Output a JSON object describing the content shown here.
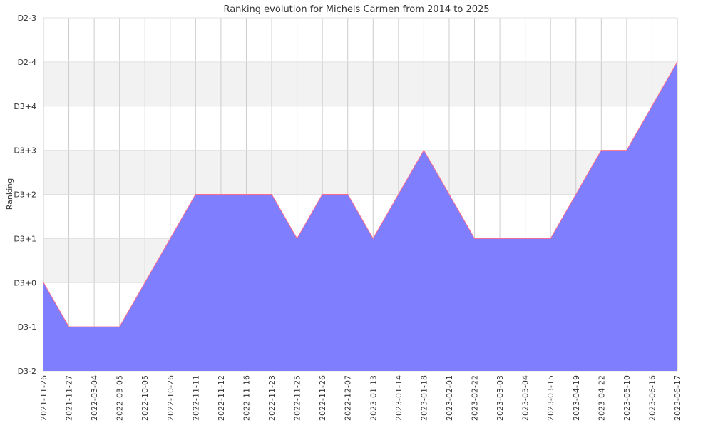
{
  "chart_data": {
    "type": "area",
    "title": "Ranking evolution for Michels Carmen from 2014 to 2025",
    "xlabel": "",
    "ylabel": "Ranking",
    "y_tick_labels": [
      "D3-2",
      "D3-1",
      "D3+0",
      "D3+1",
      "D3+2",
      "D3+3",
      "D3+4",
      "D2-4",
      "D2-3"
    ],
    "ylim": [
      0,
      8
    ],
    "categories": [
      "2021-11-26",
      "2021-11-27",
      "2022-03-04",
      "2022-03-05",
      "2022-10-05",
      "2022-10-26",
      "2022-11-11",
      "2022-11-12",
      "2022-11-16",
      "2022-11-23",
      "2022-11-25",
      "2022-11-26",
      "2022-12-07",
      "2023-01-13",
      "2023-01-14",
      "2023-01-18",
      "2023-02-01",
      "2023-02-22",
      "2023-03-03",
      "2023-03-04",
      "2023-03-15",
      "2023-04-19",
      "2023-04-22",
      "2023-05-10",
      "2023-06-16",
      "2023-06-17"
    ],
    "series": [
      {
        "name": "",
        "values": [
          2,
          1,
          1,
          1,
          2,
          3,
          4,
          4,
          4,
          4,
          3,
          4,
          4,
          3,
          4,
          5,
          4,
          3,
          3,
          3,
          3,
          4,
          5,
          5,
          6,
          7
        ]
      }
    ],
    "grid": true,
    "colors": {
      "fill": "#7b7bff",
      "line": "#ff6b8a",
      "band_alt": "#f2f2f2",
      "grid": "#cccccc"
    }
  }
}
